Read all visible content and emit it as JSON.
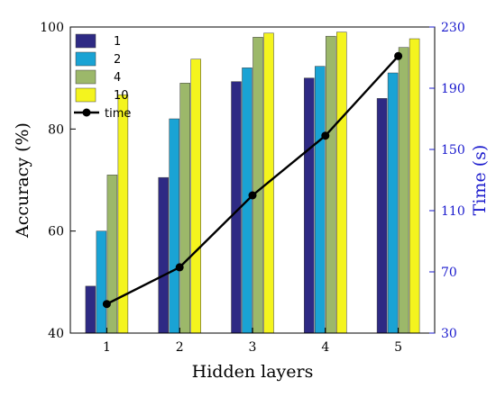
{
  "chart_data": {
    "type": "bar",
    "xlabel": "Hidden layers",
    "ylabel": "Accuracy  (%)",
    "y2label": "Time  (s)",
    "categories": [
      "1",
      "2",
      "3",
      "4",
      "5"
    ],
    "ylim": [
      40,
      100
    ],
    "yticks": [
      "40",
      "60",
      "80",
      "100"
    ],
    "y2lim": [
      30,
      230
    ],
    "y2ticks": [
      "30",
      "70",
      "110",
      "150",
      "190",
      "230"
    ],
    "grid": false,
    "legend_position": "top-left",
    "series": [
      {
        "name": "1",
        "type": "bar",
        "axis": "left",
        "color": "#2e2a84",
        "values": [
          49.2,
          70.5,
          89.3,
          90.0,
          86.0
        ]
      },
      {
        "name": "2",
        "type": "bar",
        "axis": "left",
        "color": "#1aa3d4",
        "values": [
          60.0,
          82.0,
          92.0,
          92.3,
          91.0
        ]
      },
      {
        "name": "4",
        "type": "bar",
        "axis": "left",
        "color": "#9cb86a",
        "values": [
          71.0,
          89.0,
          98.0,
          98.2,
          96.0
        ]
      },
      {
        "name": "10",
        "type": "bar",
        "axis": "left",
        "color": "#f4f41e",
        "values": [
          86.7,
          93.7,
          98.8,
          99.0,
          97.7
        ]
      },
      {
        "name": "time",
        "type": "line",
        "axis": "right",
        "color": "#000000",
        "values": [
          49,
          73,
          120,
          159,
          211
        ]
      }
    ],
    "colors": {
      "axis": "#000000",
      "right_axis": "#1a1acd"
    }
  }
}
